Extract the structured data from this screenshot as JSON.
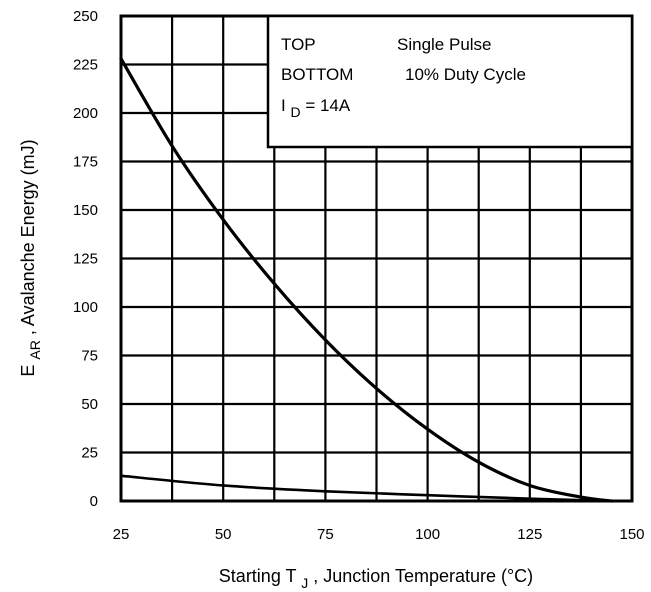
{
  "chart_data": {
    "type": "line",
    "xlabel": {
      "main": "Starting T",
      "sub": "J",
      "rest": " , Junction Temperature (°C)"
    },
    "ylabel": {
      "main": "E",
      "sub": "AR",
      "rest": " , Avalanche Energy (mJ)"
    },
    "xlim": [
      25,
      150
    ],
    "ylim": [
      0,
      250
    ],
    "x_ticks": [
      25,
      50,
      75,
      100,
      125,
      150
    ],
    "y_ticks": [
      0,
      25,
      50,
      75,
      100,
      125,
      150,
      175,
      200,
      225,
      250
    ],
    "grid": true,
    "legend": {
      "placement": "top-right",
      "top_label": "TOP",
      "top_value": "Single Pulse",
      "bottom_label": "BOTTOM",
      "bottom_value": "10% Duty Cycle",
      "current": {
        "main": "I",
        "sub": "D",
        "rest": " = 14A"
      }
    },
    "series": [
      {
        "name": "Single Pulse",
        "x": [
          25,
          37.5,
          50,
          62.5,
          75,
          87.5,
          100,
          112.5,
          125,
          137.5,
          145
        ],
        "values": [
          228,
          183,
          145,
          112,
          83,
          58,
          37,
          20,
          8,
          2,
          0
        ]
      },
      {
        "name": "10% Duty Cycle",
        "x": [
          25,
          50,
          75,
          100,
          125,
          145
        ],
        "values": [
          13,
          8,
          5,
          3,
          1.2,
          0
        ]
      }
    ]
  }
}
